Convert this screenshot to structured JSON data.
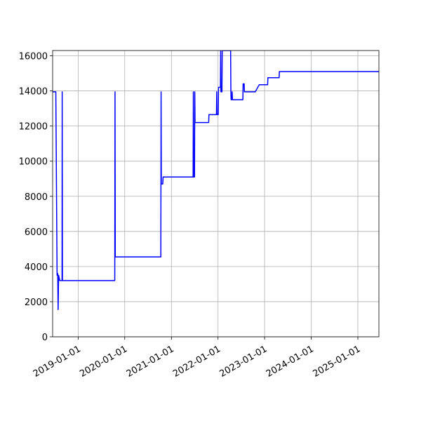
{
  "chart_data": {
    "type": "line",
    "title": "",
    "xlabel": "",
    "ylabel": "",
    "x_axis_type": "date",
    "xlim": [
      "2018-06-15",
      "2025-06-15"
    ],
    "ylim": [
      0,
      16300
    ],
    "grid": true,
    "legend": "none",
    "x_ticks": [
      "2019-01-01",
      "2020-01-01",
      "2021-01-01",
      "2022-01-01",
      "2023-01-01",
      "2024-01-01",
      "2025-01-01"
    ],
    "y_ticks": [
      0,
      2000,
      4000,
      6000,
      8000,
      10000,
      12000,
      14000,
      16000
    ],
    "colors": {
      "series": "#0000ff",
      "grid": "#b0b0b0",
      "axes": "#000000"
    },
    "series": [
      {
        "points": [
          [
            "2018-06-15",
            13950
          ],
          [
            "2018-07-10",
            13950
          ],
          [
            "2018-07-20",
            3500
          ],
          [
            "2018-07-25",
            3600
          ],
          [
            "2018-07-28",
            1550
          ],
          [
            "2018-08-01",
            3500
          ],
          [
            "2018-08-10",
            3200
          ],
          [
            "2018-08-28",
            3200
          ],
          [
            "2018-08-29",
            13950
          ],
          [
            "2018-08-31",
            3200
          ],
          [
            "2019-10-15",
            3200
          ],
          [
            "2019-10-17",
            13950
          ],
          [
            "2019-10-19",
            4550
          ],
          [
            "2020-10-10",
            4550
          ],
          [
            "2020-10-12",
            13950
          ],
          [
            "2020-10-14",
            8700
          ],
          [
            "2020-10-25",
            8700
          ],
          [
            "2020-10-28",
            9100
          ],
          [
            "2021-06-20",
            9100
          ],
          [
            "2021-06-22",
            13950
          ],
          [
            "2021-06-24",
            9100
          ],
          [
            "2021-07-01",
            9100
          ],
          [
            "2021-07-03",
            13950
          ],
          [
            "2021-07-05",
            12200
          ],
          [
            "2021-10-20",
            12200
          ],
          [
            "2021-10-22",
            12650
          ],
          [
            "2021-12-20",
            12650
          ],
          [
            "2021-12-22",
            13950
          ],
          [
            "2021-12-24",
            12650
          ],
          [
            "2022-01-03",
            12650
          ],
          [
            "2022-01-05",
            14200
          ],
          [
            "2022-01-20",
            14200
          ],
          [
            "2022-01-22",
            16300
          ],
          [
            "2022-01-24",
            13950
          ],
          [
            "2022-02-01",
            13950
          ],
          [
            "2022-02-03",
            16300
          ],
          [
            "2022-04-10",
            16300
          ],
          [
            "2022-04-12",
            13950
          ],
          [
            "2022-04-14",
            13500
          ],
          [
            "2022-04-20",
            13500
          ],
          [
            "2022-04-22",
            13950
          ],
          [
            "2022-04-24",
            13500
          ],
          [
            "2022-07-15",
            13500
          ],
          [
            "2022-07-17",
            14400
          ],
          [
            "2022-07-25",
            14400
          ],
          [
            "2022-07-27",
            13950
          ],
          [
            "2022-10-20",
            13950
          ],
          [
            "2022-11-20",
            14350
          ],
          [
            "2023-01-25",
            14350
          ],
          [
            "2023-01-27",
            14750
          ],
          [
            "2023-04-25",
            14750
          ],
          [
            "2023-04-27",
            15100
          ],
          [
            "2025-06-15",
            15100
          ]
        ]
      }
    ]
  }
}
